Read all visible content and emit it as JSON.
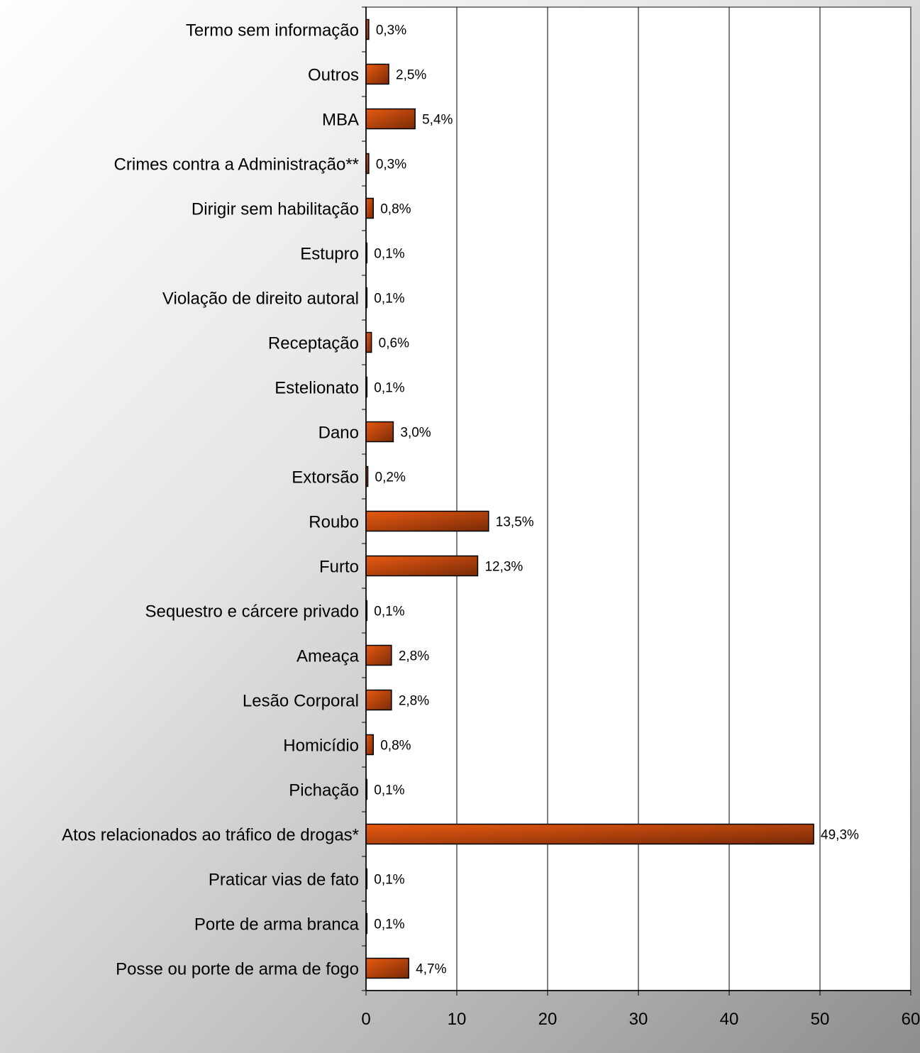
{
  "chart_data": {
    "type": "bar",
    "orientation": "horizontal",
    "title": "",
    "xlabel": "",
    "ylabel": "",
    "xlim": [
      0,
      60
    ],
    "xticks": [
      0,
      10,
      20,
      30,
      40,
      50,
      60
    ],
    "grid": "vertical gridlines",
    "legend": "none",
    "bar_color": "#e85a10",
    "bar_color_dark": "#7a2a08",
    "categories": [
      "Termo sem informação",
      "Outros",
      "MBA",
      "Crimes contra a Administração**",
      "Dirigir sem habilitação",
      "Estupro",
      "Violação de direito autoral",
      "Receptação",
      "Estelionato",
      "Dano",
      "Extorsão",
      "Roubo",
      "Furto",
      "Sequestro e cárcere privado",
      "Ameaça",
      "Lesão Corporal",
      "Homicídio",
      "Pichação",
      "Atos relacionados ao tráfico de drogas*",
      "Praticar vias de fato",
      "Porte de arma branca",
      "Posse ou porte de arma de fogo"
    ],
    "values": [
      0.3,
      2.5,
      5.4,
      0.3,
      0.8,
      0.1,
      0.1,
      0.6,
      0.1,
      3.0,
      0.2,
      13.5,
      12.3,
      0.1,
      2.8,
      2.8,
      0.8,
      0.1,
      49.3,
      0.1,
      0.1,
      4.7
    ],
    "data_labels": [
      "0,3%",
      "2,5%",
      "5,4%",
      "0,3%",
      "0,8%",
      "0,1%",
      "0,1%",
      "0,6%",
      "0,1%",
      "3,0%",
      "0,2%",
      "13,5%",
      "12,3%",
      "0,1%",
      "2,8%",
      "2,8%",
      "0,8%",
      "0,1%",
      "49,3%",
      "0,1%",
      "0,1%",
      "4,7%"
    ]
  }
}
